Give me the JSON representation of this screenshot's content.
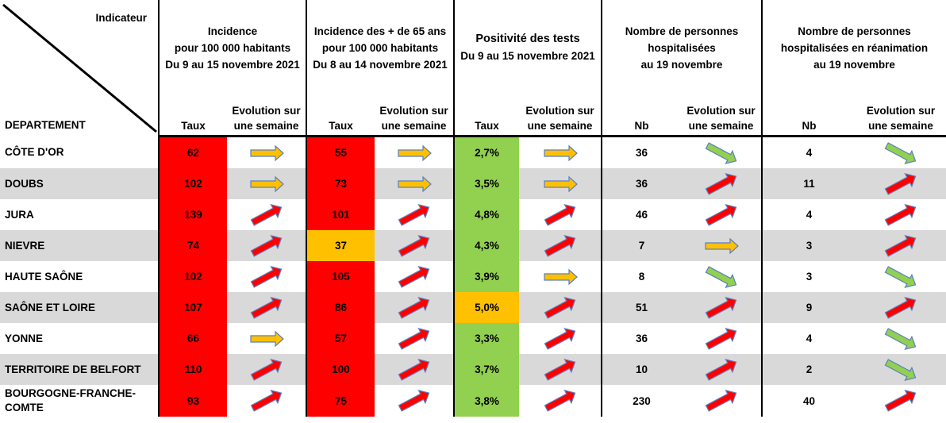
{
  "header": {
    "indicator_label": "Indicateur",
    "department_label": "DEPARTEMENT",
    "groups": [
      {
        "lines": [
          "Incidence",
          "pour 100 000 habitants",
          "Du 9 au 15 novembre 2021"
        ]
      },
      {
        "lines": [
          "Incidence des + de 65 ans",
          "pour 100 000 habitants",
          "Du 8 au 14 novembre 2021"
        ]
      },
      {
        "lines": [
          "Positivité des tests",
          "Du 9 au 15 novembre 2021"
        ]
      },
      {
        "lines": [
          "Nombre de personnes",
          "hospitalisées",
          "au 19 novembre"
        ]
      },
      {
        "lines": [
          "Nombre de personnes",
          "hospitalisées en réanimation",
          "au 19 novembre"
        ]
      }
    ],
    "sub": {
      "taux": "Taux",
      "nb": "Nb",
      "evolution_line1": "Evolution sur",
      "evolution_line2": "une semaine"
    }
  },
  "colors": {
    "red": "#ff0000",
    "orange": "#ffc000",
    "green": "#92d050",
    "row_gray": "#d9d9d9",
    "arrow_up_red": "#ff0000",
    "arrow_flat_orange": "#ffc000",
    "arrow_down_green": "#92d050"
  },
  "rows": [
    {
      "dept": [
        "CÔTE D'OR"
      ],
      "inc": "62",
      "inc_color": "red",
      "inc_ev": "flat",
      "inc65": "55",
      "inc65_color": "red",
      "inc65_ev": "flat",
      "pos": "2,7%",
      "pos_color": "green",
      "pos_ev": "flat",
      "hosp": "36",
      "hosp_ev": "down",
      "rea": "4",
      "rea_ev": "down"
    },
    {
      "dept": [
        "DOUBS"
      ],
      "inc": "102",
      "inc_color": "red",
      "inc_ev": "flat",
      "inc65": "73",
      "inc65_color": "red",
      "inc65_ev": "flat",
      "pos": "3,5%",
      "pos_color": "green",
      "pos_ev": "flat",
      "hosp": "36",
      "hosp_ev": "up",
      "rea": "11",
      "rea_ev": "up"
    },
    {
      "dept": [
        "JURA"
      ],
      "inc": "139",
      "inc_color": "red",
      "inc_ev": "up",
      "inc65": "101",
      "inc65_color": "red",
      "inc65_ev": "up",
      "pos": "4,8%",
      "pos_color": "green",
      "pos_ev": "up",
      "hosp": "46",
      "hosp_ev": "up",
      "rea": "4",
      "rea_ev": "up"
    },
    {
      "dept": [
        "NIEVRE"
      ],
      "inc": "74",
      "inc_color": "red",
      "inc_ev": "up",
      "inc65": "37",
      "inc65_color": "orange",
      "inc65_ev": "up",
      "pos": "4,3%",
      "pos_color": "green",
      "pos_ev": "up",
      "hosp": "7",
      "hosp_ev": "flat",
      "rea": "3",
      "rea_ev": "up"
    },
    {
      "dept": [
        "HAUTE SAÔNE"
      ],
      "inc": "102",
      "inc_color": "red",
      "inc_ev": "up",
      "inc65": "105",
      "inc65_color": "red",
      "inc65_ev": "up",
      "pos": "3,9%",
      "pos_color": "green",
      "pos_ev": "flat",
      "hosp": "8",
      "hosp_ev": "down",
      "rea": "3",
      "rea_ev": "down"
    },
    {
      "dept": [
        "SAÔNE ET LOIRE"
      ],
      "inc": "107",
      "inc_color": "red",
      "inc_ev": "up",
      "inc65": "86",
      "inc65_color": "red",
      "inc65_ev": "up",
      "pos": "5,0%",
      "pos_color": "orange",
      "pos_ev": "up",
      "hosp": "51",
      "hosp_ev": "up",
      "rea": "9",
      "rea_ev": "up"
    },
    {
      "dept": [
        "YONNE"
      ],
      "inc": "66",
      "inc_color": "red",
      "inc_ev": "flat",
      "inc65": "57",
      "inc65_color": "red",
      "inc65_ev": "up",
      "pos": "3,3%",
      "pos_color": "green",
      "pos_ev": "up",
      "hosp": "36",
      "hosp_ev": "up",
      "rea": "4",
      "rea_ev": "down"
    },
    {
      "dept": [
        "TERRITOIRE DE BELFORT"
      ],
      "inc": "110",
      "inc_color": "red",
      "inc_ev": "up",
      "inc65": "100",
      "inc65_color": "red",
      "inc65_ev": "up",
      "pos": "3,7%",
      "pos_color": "green",
      "pos_ev": "up",
      "hosp": "10",
      "hosp_ev": "up",
      "rea": "2",
      "rea_ev": "down"
    },
    {
      "dept": [
        "BOURGOGNE-FRANCHE-",
        "COMTE"
      ],
      "inc": "93",
      "inc_color": "red",
      "inc_ev": "up",
      "inc65": "75",
      "inc65_color": "red",
      "inc65_ev": "up",
      "pos": "3,8%",
      "pos_color": "green",
      "pos_ev": "up",
      "hosp": "230",
      "hosp_ev": "up",
      "rea": "40",
      "rea_ev": "up"
    }
  ]
}
